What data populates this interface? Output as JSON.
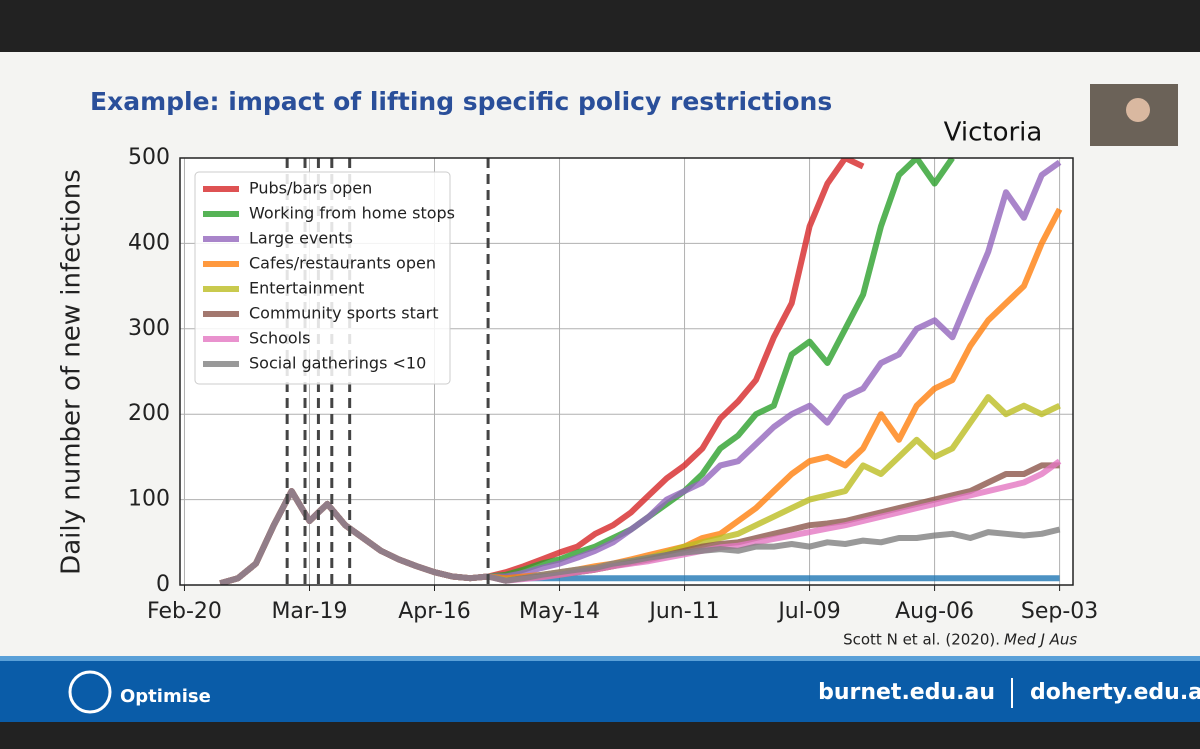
{
  "slide": {
    "title": "Example: impact of lifting specific policy restrictions",
    "citation": "Scott N et al. (2020).",
    "citation_journal": "Med J Aus",
    "logo": "Optimise",
    "links": [
      "burnet.edu.au",
      "doherty.edu.au"
    ]
  },
  "chart_data": {
    "type": "line",
    "title": "Victoria",
    "ylabel": "Daily number of new infections",
    "x": [
      8,
      12,
      16,
      20,
      24,
      28,
      32,
      36,
      40,
      44,
      48,
      52,
      56,
      60,
      64,
      68,
      72,
      76,
      80,
      84,
      88,
      92,
      96,
      100,
      104,
      108,
      112,
      116,
      120,
      124,
      128,
      132,
      136,
      140,
      144,
      148,
      152,
      156,
      160,
      164,
      168,
      172,
      176,
      180,
      184,
      188,
      192,
      196
    ],
    "xlim": [
      -1,
      199
    ],
    "xticks": [
      {
        "value": 0,
        "label": "Feb-20"
      },
      {
        "value": 28,
        "label": "Mar-19"
      },
      {
        "value": 56,
        "label": "Apr-16"
      },
      {
        "value": 84,
        "label": "May-14"
      },
      {
        "value": 112,
        "label": "Jun-11"
      },
      {
        "value": 140,
        "label": "Jul-09"
      },
      {
        "value": 168,
        "label": "Aug-06"
      },
      {
        "value": 196,
        "label": "Sep-03"
      }
    ],
    "ylim": [
      0,
      500
    ],
    "yticks": [
      0,
      100,
      200,
      300,
      400,
      500
    ],
    "grid": true,
    "legend": "upper left",
    "vlines": [
      23,
      27,
      30,
      33,
      37,
      68
    ],
    "series": [
      {
        "color": "#1f77b4",
        "values": [
          null,
          null,
          null,
          null,
          null,
          null,
          null,
          null,
          null,
          null,
          null,
          null,
          null,
          null,
          null,
          null,
          8,
          8,
          8,
          8,
          8,
          8,
          8,
          8,
          8,
          8,
          8,
          8,
          8,
          8,
          8,
          8,
          8,
          8,
          8,
          8,
          8,
          8,
          8,
          8,
          8,
          8,
          8,
          8,
          8,
          8,
          8,
          8
        ]
      },
      {
        "name": "Pubs/bars open",
        "color": "#d62728",
        "values": [
          2,
          8,
          25,
          70,
          110,
          75,
          95,
          70,
          55,
          40,
          30,
          22,
          15,
          10,
          8,
          10,
          15,
          22,
          30,
          38,
          45,
          60,
          70,
          85,
          105,
          125,
          140,
          160,
          195,
          215,
          240,
          290,
          330,
          420,
          470,
          500,
          490,
          null,
          null,
          null,
          null,
          null,
          null,
          null,
          null,
          null,
          null,
          null
        ]
      },
      {
        "name": "Working from home stops",
        "color": "#2ca02c",
        "values": [
          2,
          8,
          25,
          70,
          110,
          75,
          95,
          70,
          55,
          40,
          30,
          22,
          15,
          10,
          8,
          10,
          12,
          18,
          25,
          30,
          38,
          45,
          55,
          65,
          80,
          95,
          110,
          130,
          160,
          175,
          200,
          210,
          270,
          285,
          260,
          300,
          340,
          420,
          480,
          500,
          470,
          500,
          null,
          null,
          null,
          null,
          null,
          null
        ]
      },
      {
        "name": "Large events",
        "color": "#9467bd",
        "values": [
          2,
          8,
          25,
          70,
          110,
          75,
          95,
          70,
          55,
          40,
          30,
          22,
          15,
          10,
          8,
          10,
          10,
          14,
          20,
          25,
          32,
          40,
          50,
          65,
          80,
          100,
          110,
          120,
          140,
          145,
          165,
          185,
          200,
          210,
          190,
          220,
          230,
          260,
          270,
          300,
          310,
          290,
          340,
          390,
          460,
          430,
          480,
          495
        ]
      },
      {
        "name": "Cafes/restaurants open",
        "color": "#ff7f0e",
        "values": [
          2,
          8,
          25,
          70,
          110,
          75,
          95,
          70,
          55,
          40,
          30,
          22,
          15,
          10,
          8,
          10,
          8,
          10,
          12,
          15,
          18,
          22,
          25,
          30,
          35,
          40,
          45,
          55,
          60,
          75,
          90,
          110,
          130,
          145,
          150,
          140,
          160,
          200,
          170,
          210,
          230,
          240,
          280,
          310,
          330,
          350,
          400,
          440
        ]
      },
      {
        "name": "Entertainment",
        "color": "#bcbd22",
        "values": [
          2,
          8,
          25,
          70,
          110,
          75,
          95,
          70,
          55,
          40,
          30,
          22,
          15,
          10,
          8,
          10,
          6,
          8,
          10,
          12,
          15,
          18,
          22,
          28,
          32,
          38,
          45,
          50,
          55,
          60,
          70,
          80,
          90,
          100,
          105,
          110,
          140,
          130,
          150,
          170,
          150,
          160,
          190,
          220,
          200,
          210,
          200,
          210
        ]
      },
      {
        "name": "Community sports start",
        "color": "#8c564b",
        "values": [
          2,
          8,
          25,
          70,
          110,
          75,
          95,
          70,
          55,
          40,
          30,
          22,
          15,
          10,
          8,
          10,
          5,
          8,
          10,
          12,
          15,
          18,
          22,
          26,
          30,
          35,
          40,
          45,
          48,
          50,
          55,
          60,
          65,
          70,
          72,
          75,
          80,
          85,
          90,
          95,
          100,
          105,
          110,
          120,
          130,
          130,
          140,
          140
        ]
      },
      {
        "name": "Schools",
        "color": "#e377c2",
        "values": [
          2,
          8,
          25,
          70,
          110,
          75,
          95,
          70,
          55,
          40,
          30,
          22,
          15,
          10,
          8,
          10,
          5,
          7,
          9,
          12,
          15,
          18,
          22,
          25,
          28,
          32,
          36,
          40,
          44,
          46,
          50,
          54,
          58,
          62,
          66,
          70,
          75,
          80,
          85,
          90,
          95,
          100,
          105,
          110,
          115,
          120,
          130,
          145
        ]
      },
      {
        "name": "Social gatherings <10",
        "color": "#7f7f7f",
        "values": [
          2,
          8,
          25,
          70,
          110,
          75,
          95,
          70,
          55,
          40,
          30,
          22,
          15,
          10,
          8,
          10,
          5,
          8,
          12,
          15,
          18,
          20,
          25,
          28,
          32,
          35,
          38,
          40,
          42,
          40,
          45,
          45,
          48,
          45,
          50,
          48,
          52,
          50,
          55,
          55,
          58,
          60,
          55,
          62,
          60,
          58,
          60,
          65
        ]
      }
    ]
  }
}
